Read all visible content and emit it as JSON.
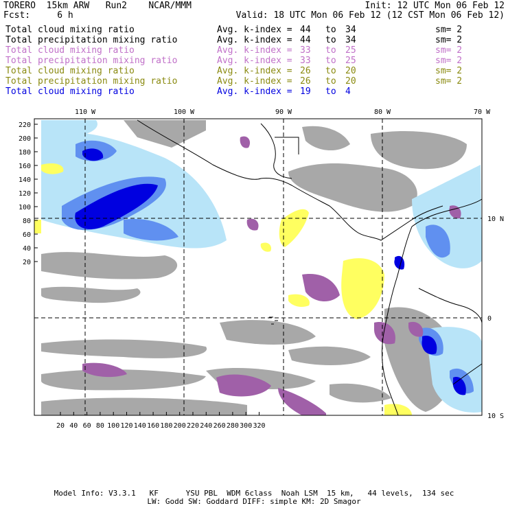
{
  "header": {
    "left1": "TORERO  15km ARW   Run2    NCAR/MMM",
    "right1": "Init: 12 UTC Mon 06 Feb 12",
    "left2": "Fcst:     6 h",
    "right2": "Valid: 18 UTC Mon 06 Feb 12 (12 CST Mon 06 Feb 12)"
  },
  "legend": [
    {
      "field": "Total cloud mixing ratio",
      "stat": "Avg. k-index =",
      "from": "44",
      "to_word": "to",
      "to": "34",
      "sm": "sm= 2",
      "color": "#000000"
    },
    {
      "field": "Total precipitation mixing ratio",
      "stat": "Avg. k-index =",
      "from": "44",
      "to_word": "to",
      "to": "34",
      "sm": "sm= 2",
      "color": "#000000"
    },
    {
      "field": "Total cloud mixing ratio",
      "stat": "Avg. k-index =",
      "from": "33",
      "to_word": "to",
      "to": "25",
      "sm": "sm= 2",
      "color": "#c070c8"
    },
    {
      "field": "Total precipitation mixing ratio",
      "stat": "Avg. k-index =",
      "from": "33",
      "to_word": "to",
      "to": "25",
      "sm": "sm= 2",
      "color": "#c070c8"
    },
    {
      "field": "Total cloud mixing ratio",
      "stat": "Avg. k-index =",
      "from": "26",
      "to_word": "to",
      "to": "20",
      "sm": "sm= 2",
      "color": "#8a8a10"
    },
    {
      "field": "Total precipitation mixing ratio",
      "stat": "Avg. k-index =",
      "from": "26",
      "to_word": "to",
      "to": "20",
      "sm": "sm= 2",
      "color": "#8a8a10"
    },
    {
      "field": "Total cloud mixing ratio",
      "stat": "Avg. k-index =",
      "from": "19",
      "to_word": "to",
      "to": "4",
      "sm": "",
      "color": "#0000e0"
    }
  ],
  "map": {
    "top_lon_labels": [
      "110 W",
      "100 W",
      "90 W",
      "80 W",
      "70 W"
    ],
    "right_lat_labels": [
      "10 N",
      "0",
      "10 S"
    ],
    "left_ticks": [
      "220",
      "200",
      "180",
      "160",
      "140",
      "120",
      "100",
      "80",
      "60",
      "40",
      "20"
    ],
    "bottom_ticks": [
      "20",
      "40",
      "60",
      "80",
      "100",
      "120",
      "140",
      "160",
      "180",
      "200",
      "220",
      "240",
      "260",
      "280",
      "300",
      "320"
    ],
    "colors": {
      "gray": "#a8a8a8",
      "purple": "#a060a8",
      "yellow": "#ffff60",
      "blue_light": "#b8e4f8",
      "blue_mid": "#6090f0",
      "blue_dark": "#0000e0"
    }
  },
  "footer": {
    "line1": "Model Info: V3.3.1   KF      YSU PBL  WDM 6class  Noah LSM  15 km,   44 levels,  134 sec",
    "line2": "LW: Godd SW: Goddard DIFF: simple KM: 2D Smagor"
  }
}
